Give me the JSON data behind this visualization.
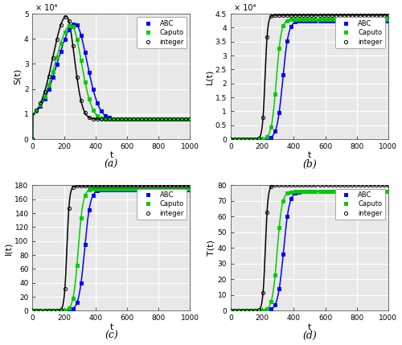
{
  "subplots": [
    {
      "label": "(a)",
      "ylabel": "S(t)",
      "ylim": [
        0,
        50000.0
      ],
      "yticks": [
        0,
        10000.0,
        20000.0,
        30000.0,
        40000.0,
        50000.0
      ],
      "ytick_labels": [
        "0",
        "1",
        "2",
        "3",
        "4",
        "5"
      ],
      "yexp": true,
      "curves": {
        "ABC": {
          "t0": 270,
          "peak": 46000.0,
          "sl": 110,
          "sr": 75,
          "steady": 8000
        },
        "Caputo": {
          "t0": 245,
          "peak": 45500.0,
          "sl": 100,
          "sr": 65,
          "steady": 8000
        },
        "integer": {
          "t0": 215,
          "peak": 49000.0,
          "sl": 85,
          "sr": 50,
          "steady": 8000
        }
      }
    },
    {
      "label": "(b)",
      "ylabel": "L(t)",
      "ylim": [
        0,
        45000.0
      ],
      "yticks": [
        0,
        5000.0,
        10000.0,
        15000.0,
        20000.0,
        25000.0,
        30000.0,
        35000.0,
        40000.0,
        45000.0
      ],
      "ytick_labels": [
        "0",
        "0.5",
        "1",
        "1.5",
        "2",
        "2.5",
        "3",
        "3.5",
        "4",
        "4.5"
      ],
      "yexp": true,
      "curves": {
        "ABC": {
          "t0": 330,
          "k": 0.055,
          "low": 0,
          "high": 42500.0
        },
        "Caputo": {
          "t0": 290,
          "k": 0.065,
          "low": 0,
          "high": 43000.0
        },
        "integer": {
          "t0": 218,
          "k": 0.12,
          "low": 0,
          "high": 44500.0
        }
      }
    },
    {
      "label": "(c)",
      "ylabel": "I(t)",
      "ylim": [
        0,
        180
      ],
      "yticks": [
        0,
        20,
        40,
        60,
        80,
        100,
        120,
        140,
        160,
        180
      ],
      "ytick_labels": [
        "0",
        "20",
        "40",
        "60",
        "80",
        "100",
        "120",
        "140",
        "160",
        "180"
      ],
      "yexp": false,
      "curves": {
        "ABC": {
          "t0": 330,
          "k": 0.055,
          "low": 0,
          "high": 174
        },
        "Caputo": {
          "t0": 290,
          "k": 0.065,
          "low": 0,
          "high": 175
        },
        "integer": {
          "t0": 218,
          "k": 0.12,
          "low": 0,
          "high": 179
        }
      }
    },
    {
      "label": "(d)",
      "ylabel": "T(t)",
      "ylim": [
        0,
        80
      ],
      "yticks": [
        0,
        10,
        20,
        30,
        40,
        50,
        60,
        70,
        80
      ],
      "ytick_labels": [
        "0",
        "10",
        "20",
        "30",
        "40",
        "50",
        "60",
        "70",
        "80"
      ],
      "yexp": false,
      "curves": {
        "ABC": {
          "t0": 335,
          "k": 0.055,
          "low": 0,
          "high": 76
        },
        "Caputo": {
          "t0": 295,
          "k": 0.065,
          "low": 0,
          "high": 76
        },
        "integer": {
          "t0": 220,
          "k": 0.12,
          "low": 0,
          "high": 80
        }
      }
    }
  ],
  "colors": {
    "ABC": "#0000ff",
    "Caputo": "#00cc00",
    "integer": "#000000"
  },
  "markers": {
    "ABC": "s",
    "Caputo": "s",
    "integer": "o"
  },
  "xlim": [
    0,
    1000
  ],
  "xticks": [
    0,
    200,
    400,
    600,
    800,
    1000
  ],
  "xlabel": "t",
  "bg_color": "#e8e8e8",
  "grid_color": "white",
  "n_markers": 40
}
